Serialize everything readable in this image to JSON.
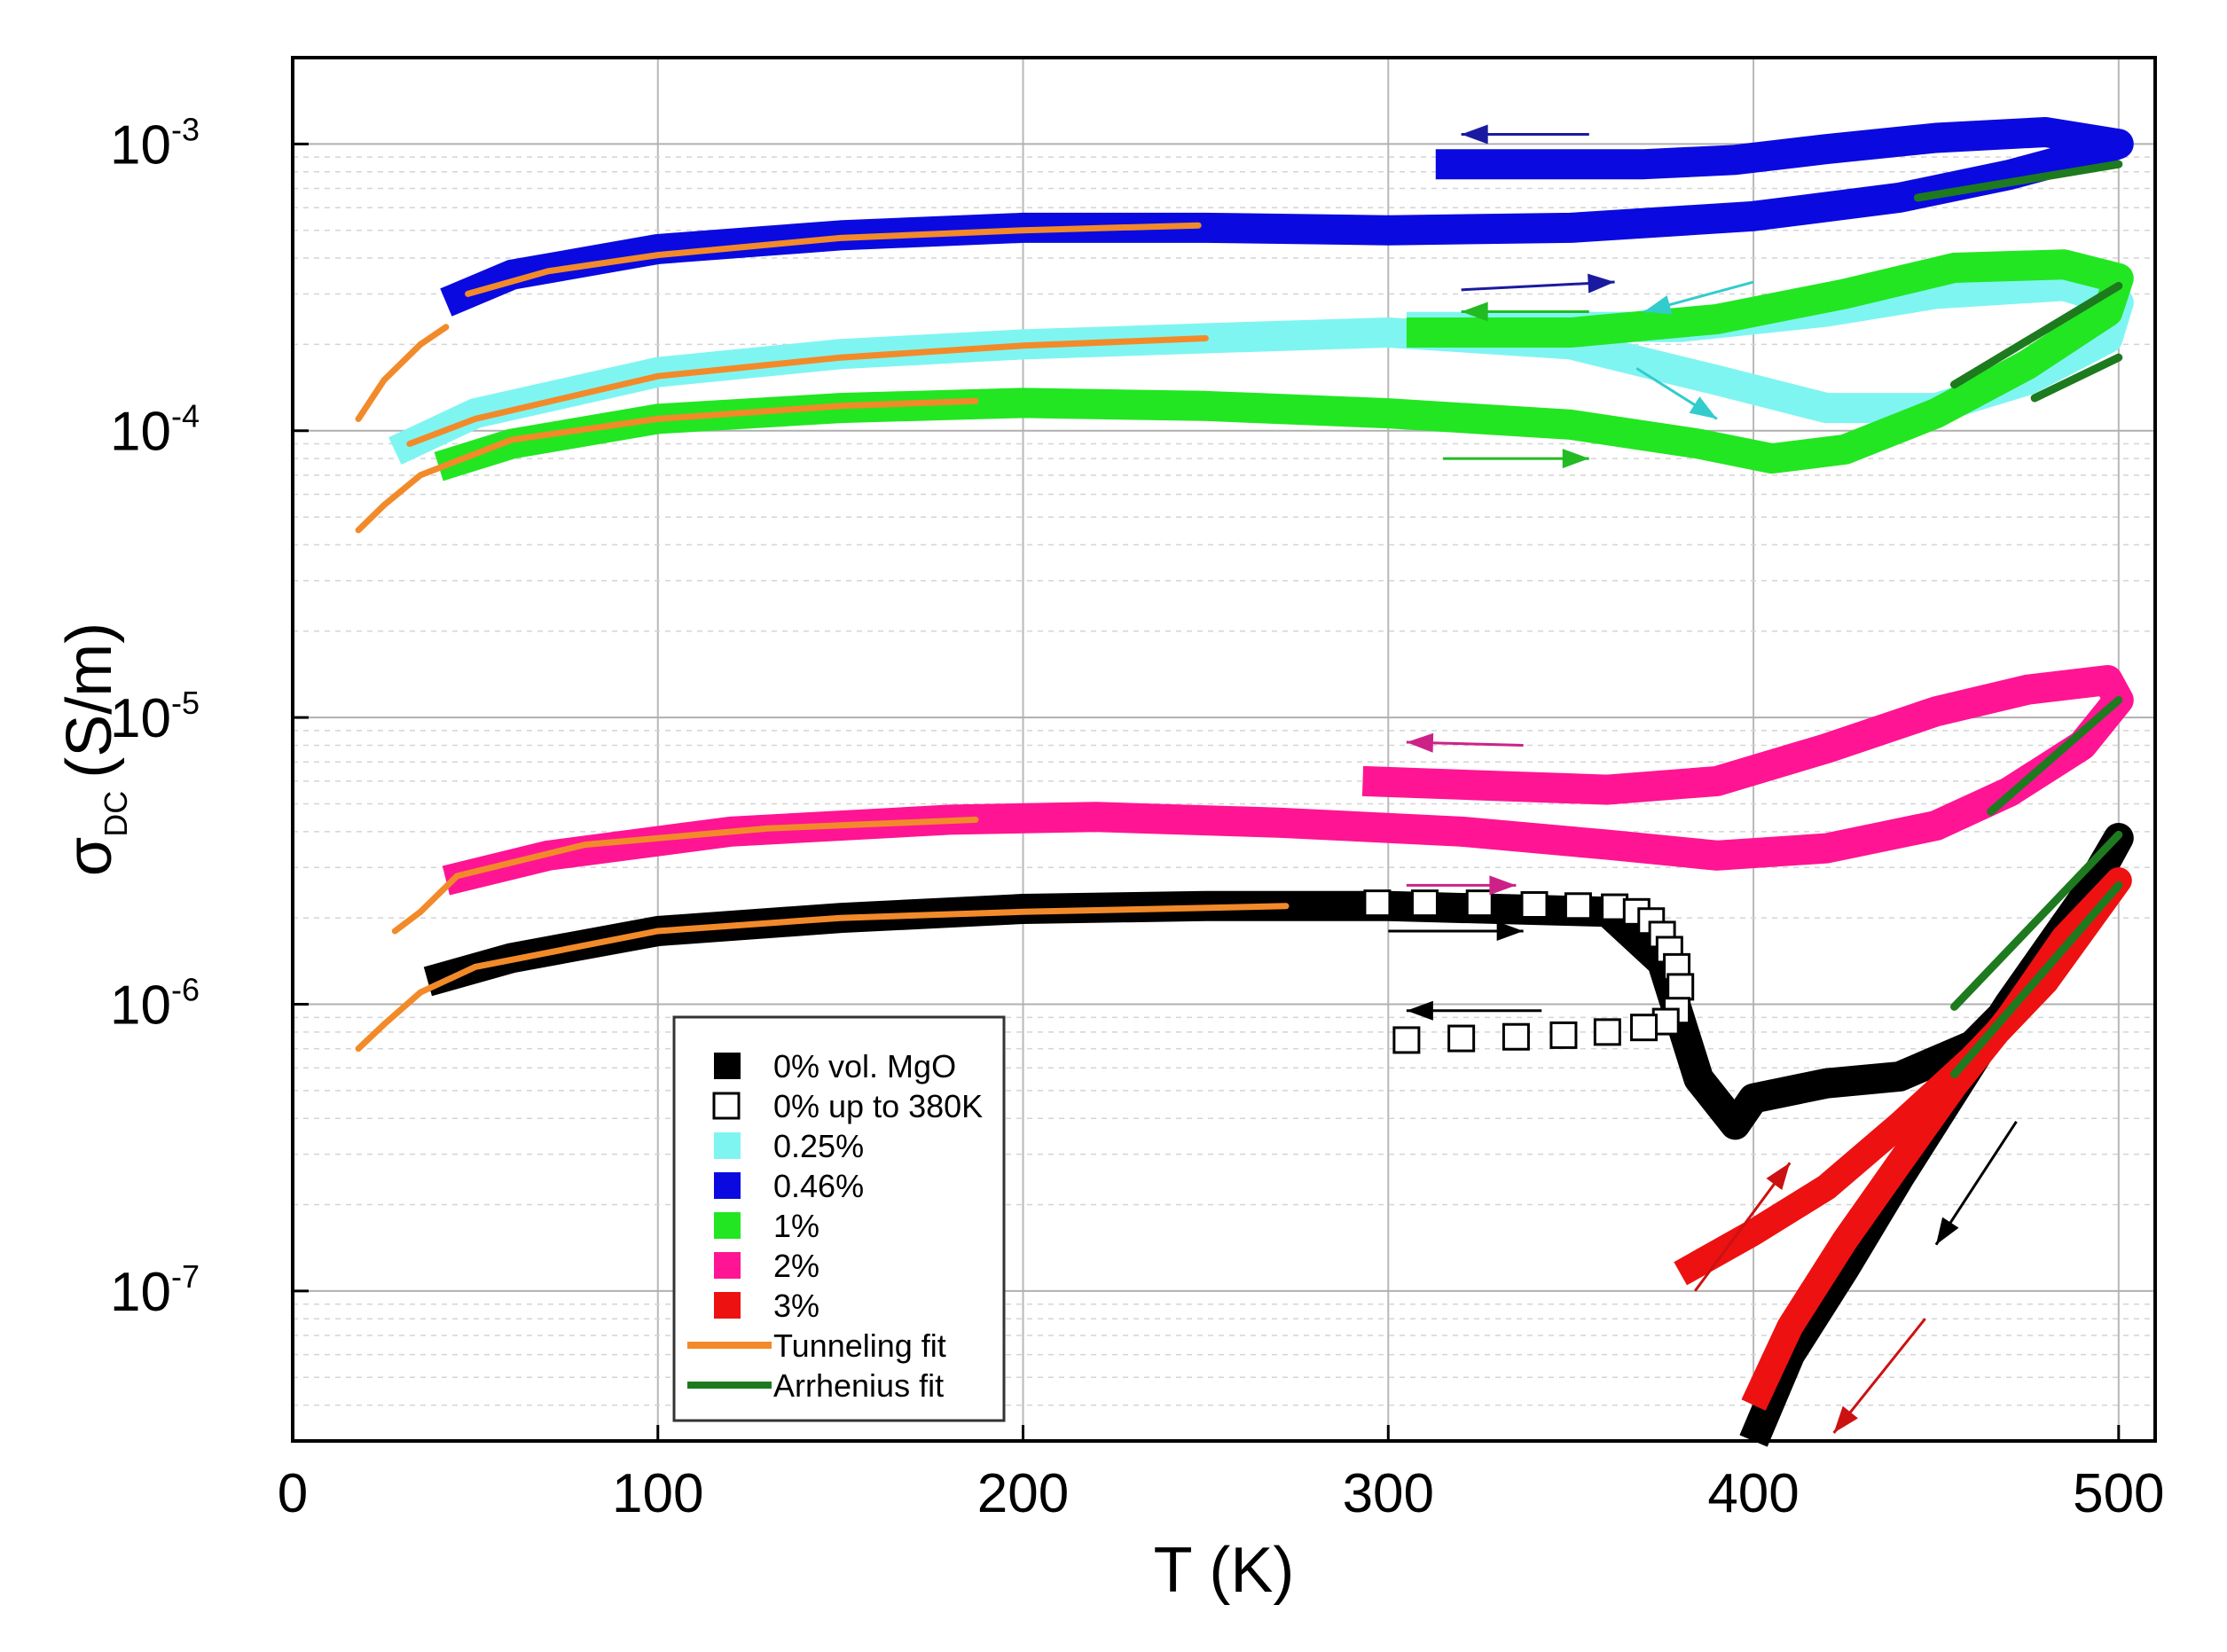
{
  "chart_data": {
    "type": "line",
    "title": "",
    "xlabel": "T (K)",
    "ylabel": {
      "symbol": "σ",
      "subscript": "DC",
      "units": "(S/m)"
    },
    "yscale": "log",
    "xlim": [
      0,
      510
    ],
    "ylim": [
      3e-08,
      0.002
    ],
    "grid": true,
    "x_ticks": [
      {
        "v": 0,
        "label": "0"
      },
      {
        "v": 100,
        "label": "100"
      },
      {
        "v": 200,
        "label": "200"
      },
      {
        "v": 300,
        "label": "300"
      },
      {
        "v": 400,
        "label": "400"
      },
      {
        "v": 500,
        "label": "500"
      }
    ],
    "y_ticks": [
      {
        "v": 1e-07,
        "base": "10",
        "exp": "-7"
      },
      {
        "v": 1e-06,
        "base": "10",
        "exp": "-6"
      },
      {
        "v": 1e-05,
        "base": "10",
        "exp": "-5"
      },
      {
        "v": 0.0001,
        "base": "10",
        "exp": "-4"
      },
      {
        "v": 0.001,
        "base": "10",
        "exp": "-3"
      }
    ],
    "legend_position": "bottom-center",
    "legend": [
      {
        "label": "0% vol. MgO",
        "kind": "square",
        "color": "#000000"
      },
      {
        "label": "0% up to 380K",
        "kind": "open-square",
        "color": "#000000"
      },
      {
        "label": "0.25%",
        "kind": "square",
        "color": "#7ff5f2"
      },
      {
        "label": "0.46%",
        "kind": "square",
        "color": "#0a0ae0"
      },
      {
        "label": "1%",
        "kind": "square",
        "color": "#22e622"
      },
      {
        "label": "2%",
        "kind": "square",
        "color": "#ff1493"
      },
      {
        "label": "3%",
        "kind": "square",
        "color": "#ee1111"
      },
      {
        "label": "Tunneling fit",
        "kind": "line",
        "color": "#f28a2a"
      },
      {
        "label": "Arrhenius fit",
        "kind": "line",
        "color": "#1e7a1e"
      }
    ],
    "series": [
      {
        "name": "0.46%",
        "color": "#0a0ae0",
        "width": 34,
        "points": [
          [
            42,
            0.00028
          ],
          [
            60,
            0.00035
          ],
          [
            100,
            0.00043
          ],
          [
            150,
            0.00048
          ],
          [
            200,
            0.00051
          ],
          [
            250,
            0.00051
          ],
          [
            300,
            0.0005
          ],
          [
            350,
            0.00051
          ],
          [
            400,
            0.00056
          ],
          [
            440,
            0.00065
          ],
          [
            470,
            0.00078
          ],
          [
            495,
            0.00095
          ],
          [
            500,
            0.001
          ],
          [
            480,
            0.0011
          ],
          [
            450,
            0.00105
          ],
          [
            420,
            0.00096
          ],
          [
            395,
            0.00088
          ],
          [
            370,
            0.00085
          ],
          [
            340,
            0.00085
          ],
          [
            313,
            0.00085
          ]
        ]
      },
      {
        "name": "0.25%",
        "color": "#7ff5f2",
        "width": 34,
        "points": [
          [
            28,
            8.5e-05
          ],
          [
            50,
            0.000115
          ],
          [
            100,
            0.00016
          ],
          [
            150,
            0.000185
          ],
          [
            200,
            0.0002
          ],
          [
            250,
            0.00021
          ],
          [
            300,
            0.00022
          ],
          [
            350,
            0.0002
          ],
          [
            390,
            0.00015
          ],
          [
            420,
            0.00012
          ],
          [
            450,
            0.00012
          ],
          [
            475,
            0.00015
          ],
          [
            497,
            0.00021
          ],
          [
            500,
            0.00028
          ],
          [
            485,
            0.00032
          ],
          [
            450,
            0.0003
          ],
          [
            420,
            0.00026
          ],
          [
            380,
            0.00023
          ],
          [
            340,
            0.00023
          ],
          [
            305,
            0.00023
          ]
        ]
      },
      {
        "name": "1%",
        "color": "#22e622",
        "width": 34,
        "points": [
          [
            40,
            7.5e-05
          ],
          [
            60,
            9e-05
          ],
          [
            100,
            0.00011
          ],
          [
            150,
            0.00012
          ],
          [
            200,
            0.000125
          ],
          [
            250,
            0.000122
          ],
          [
            300,
            0.000115
          ],
          [
            350,
            0.000105
          ],
          [
            385,
            9e-05
          ],
          [
            405,
            8e-05
          ],
          [
            425,
            8.6e-05
          ],
          [
            450,
            0.000115
          ],
          [
            475,
            0.00017
          ],
          [
            497,
            0.00026
          ],
          [
            500,
            0.00034
          ],
          [
            485,
            0.00038
          ],
          [
            455,
            0.00037
          ],
          [
            425,
            0.0003
          ],
          [
            390,
            0.000245
          ],
          [
            350,
            0.00022
          ],
          [
            305,
            0.00022
          ]
        ]
      },
      {
        "name": "2%",
        "color": "#ff1493",
        "width": 34,
        "points": [
          [
            42,
            2.7e-06
          ],
          [
            70,
            3.3e-06
          ],
          [
            120,
            4e-06
          ],
          [
            180,
            4.4e-06
          ],
          [
            220,
            4.5e-06
          ],
          [
            270,
            4.3e-06
          ],
          [
            320,
            4e-06
          ],
          [
            360,
            3.6e-06
          ],
          [
            390,
            3.3e-06
          ],
          [
            420,
            3.5e-06
          ],
          [
            450,
            4.2e-06
          ],
          [
            470,
            5.5e-06
          ],
          [
            490,
            8e-06
          ],
          [
            500,
            1.15e-05
          ],
          [
            497,
            1.35e-05
          ],
          [
            475,
            1.25e-05
          ],
          [
            450,
            1.05e-05
          ],
          [
            420,
            7.8e-06
          ],
          [
            390,
            6e-06
          ],
          [
            360,
            5.6e-06
          ],
          [
            325,
            5.8e-06
          ],
          [
            293,
            6e-06
          ]
        ]
      },
      {
        "name": "0% vol. MgO",
        "color": "#000000",
        "width": 34,
        "points": [
          [
            37,
            1.2e-06
          ],
          [
            60,
            1.45e-06
          ],
          [
            100,
            1.8e-06
          ],
          [
            150,
            2e-06
          ],
          [
            200,
            2.15e-06
          ],
          [
            250,
            2.2e-06
          ],
          [
            295,
            2.2e-06
          ],
          [
            300,
            2.2e-06
          ],
          [
            360,
            2.1e-06
          ],
          [
            375,
            1.4e-06
          ],
          [
            385,
            5.5e-07
          ],
          [
            395,
            3.8e-07
          ],
          [
            400,
            4.7e-07
          ],
          [
            420,
            5.3e-07
          ],
          [
            440,
            5.6e-07
          ],
          [
            460,
            7.2e-07
          ],
          [
            480,
            1.3e-06
          ],
          [
            500,
            3.8e-06
          ],
          [
            490,
            2.3e-06
          ],
          [
            470,
            1e-06
          ],
          [
            455,
            5e-07
          ],
          [
            440,
            2.5e-07
          ],
          [
            425,
            1.2e-07
          ],
          [
            410,
            6e-08
          ],
          [
            400,
            3e-08
          ]
        ]
      },
      {
        "name": "3%",
        "color": "#ee1111",
        "width": 30,
        "points": [
          [
            380,
            1.15e-07
          ],
          [
            400,
            1.6e-07
          ],
          [
            420,
            2.3e-07
          ],
          [
            440,
            3.8e-07
          ],
          [
            460,
            6.5e-07
          ],
          [
            480,
            1.2e-06
          ],
          [
            500,
            2.7e-06
          ],
          [
            485,
            1.7e-06
          ],
          [
            470,
            9e-07
          ],
          [
            455,
            5.2e-07
          ],
          [
            440,
            2.8e-07
          ],
          [
            425,
            1.5e-07
          ],
          [
            410,
            7.5e-08
          ],
          [
            400,
            4e-08
          ]
        ]
      },
      {
        "name": "0% up to 380K",
        "color": "#000000",
        "kind": "open-markers",
        "points": [
          [
            297,
            2.25e-06
          ],
          [
            310,
            2.25e-06
          ],
          [
            325,
            2.25e-06
          ],
          [
            340,
            2.22e-06
          ],
          [
            352,
            2.2e-06
          ],
          [
            362,
            2.18e-06
          ],
          [
            368,
            2.1e-06
          ],
          [
            372,
            1.95e-06
          ],
          [
            375,
            1.75e-06
          ],
          [
            377,
            1.55e-06
          ],
          [
            379,
            1.35e-06
          ],
          [
            380,
            1.15e-06
          ],
          [
            379,
            9.5e-07
          ],
          [
            376,
            8.7e-07
          ],
          [
            370,
            8.3e-07
          ],
          [
            360,
            8e-07
          ],
          [
            348,
            7.8e-07
          ],
          [
            335,
            7.7e-07
          ],
          [
            320,
            7.6e-07
          ],
          [
            305,
            7.5e-07
          ]
        ]
      }
    ],
    "tunneling_fits": [
      {
        "color": "#f28a2a",
        "points": [
          [
            48,
            0.0003
          ],
          [
            70,
            0.00036
          ],
          [
            100,
            0.00041
          ],
          [
            150,
            0.00047
          ],
          [
            200,
            0.0005
          ],
          [
            248,
            0.00052
          ]
        ]
      },
      {
        "color": "#f28a2a",
        "points": [
          [
            18,
            0.00011
          ],
          [
            25,
            0.00015
          ],
          [
            35,
            0.0002
          ],
          [
            42,
            0.00023
          ]
        ]
      },
      {
        "color": "#f28a2a",
        "points": [
          [
            32,
            9e-05
          ],
          [
            50,
            0.00011
          ],
          [
            100,
            0.000155
          ],
          [
            150,
            0.00018
          ],
          [
            200,
            0.000198
          ],
          [
            250,
            0.00021
          ]
        ]
      },
      {
        "color": "#f28a2a",
        "points": [
          [
            18,
            4.5e-05
          ],
          [
            25,
            5.5e-05
          ],
          [
            35,
            7e-05
          ],
          [
            60,
            9.3e-05
          ],
          [
            100,
            0.00011
          ],
          [
            150,
            0.000122
          ],
          [
            187,
            0.000127
          ]
        ]
      },
      {
        "color": "#f28a2a",
        "points": [
          [
            28,
            1.8e-06
          ],
          [
            35,
            2.1e-06
          ],
          [
            45,
            2.8e-06
          ],
          [
            80,
            3.6e-06
          ],
          [
            130,
            4.1e-06
          ],
          [
            187,
            4.4e-06
          ]
        ]
      },
      {
        "color": "#f28a2a",
        "points": [
          [
            18,
            7e-07
          ],
          [
            25,
            8.5e-07
          ],
          [
            35,
            1.1e-06
          ],
          [
            50,
            1.35e-06
          ],
          [
            100,
            1.8e-06
          ],
          [
            150,
            2e-06
          ],
          [
            200,
            2.1e-06
          ],
          [
            272,
            2.2e-06
          ]
        ]
      }
    ],
    "arrhenius_fits": [
      {
        "color": "#1e7a1e",
        "points": [
          [
            445,
            0.00065
          ],
          [
            500,
            0.00085
          ]
        ]
      },
      {
        "color": "#1e7a1e",
        "points": [
          [
            455,
            0.000145
          ],
          [
            500,
            0.00032
          ]
        ]
      },
      {
        "color": "#1e7a1e",
        "points": [
          [
            477,
            0.00013
          ],
          [
            500,
            0.00018
          ]
        ]
      },
      {
        "color": "#1e7a1e",
        "points": [
          [
            465,
            4.7e-06
          ],
          [
            500,
            1.15e-05
          ]
        ]
      },
      {
        "color": "#1e7a1e",
        "points": [
          [
            455,
            9.8e-07
          ],
          [
            500,
            3.9e-06
          ]
        ]
      },
      {
        "color": "#1e7a1e",
        "points": [
          [
            455,
            5.7e-07
          ],
          [
            500,
            2.6e-06
          ]
        ]
      }
    ],
    "arrows": [
      {
        "color": "#1a1aa0",
        "from": [
          355,
          0.00108
        ],
        "to": [
          320,
          0.00108
        ]
      },
      {
        "color": "#1a1aa0",
        "from": [
          320,
          0.00031
        ],
        "to": [
          362,
          0.00033
        ]
      },
      {
        "color": "#22bb22",
        "from": [
          355,
          0.00026
        ],
        "to": [
          320,
          0.00026
        ]
      },
      {
        "color": "#33cccc",
        "from": [
          400,
          0.00033
        ],
        "to": [
          370,
          0.00026
        ]
      },
      {
        "color": "#33cccc",
        "from": [
          368,
          0.000165
        ],
        "to": [
          390,
          0.00011
        ]
      },
      {
        "color": "#22bb22",
        "from": [
          315,
          8e-05
        ],
        "to": [
          355,
          8e-05
        ]
      },
      {
        "color": "#cc2288",
        "from": [
          337,
          8e-06
        ],
        "to": [
          305,
          8.2e-06
        ]
      },
      {
        "color": "#cc2288",
        "from": [
          305,
          2.6e-06
        ],
        "to": [
          335,
          2.6e-06
        ]
      },
      {
        "color": "#000000",
        "from": [
          300,
          1.8e-06
        ],
        "to": [
          337,
          1.8e-06
        ]
      },
      {
        "color": "#000000",
        "from": [
          342,
          9.5e-07
        ],
        "to": [
          305,
          9.5e-07
        ]
      },
      {
        "color": "#cc1111",
        "from": [
          384,
          1e-07
        ],
        "to": [
          410,
          2.8e-07
        ]
      },
      {
        "color": "#000000",
        "from": [
          472,
          3.9e-07
        ],
        "to": [
          450,
          1.45e-07
        ]
      },
      {
        "color": "#cc1111",
        "from": [
          447,
          8e-08
        ],
        "to": [
          422,
          3.2e-08
        ]
      }
    ]
  }
}
